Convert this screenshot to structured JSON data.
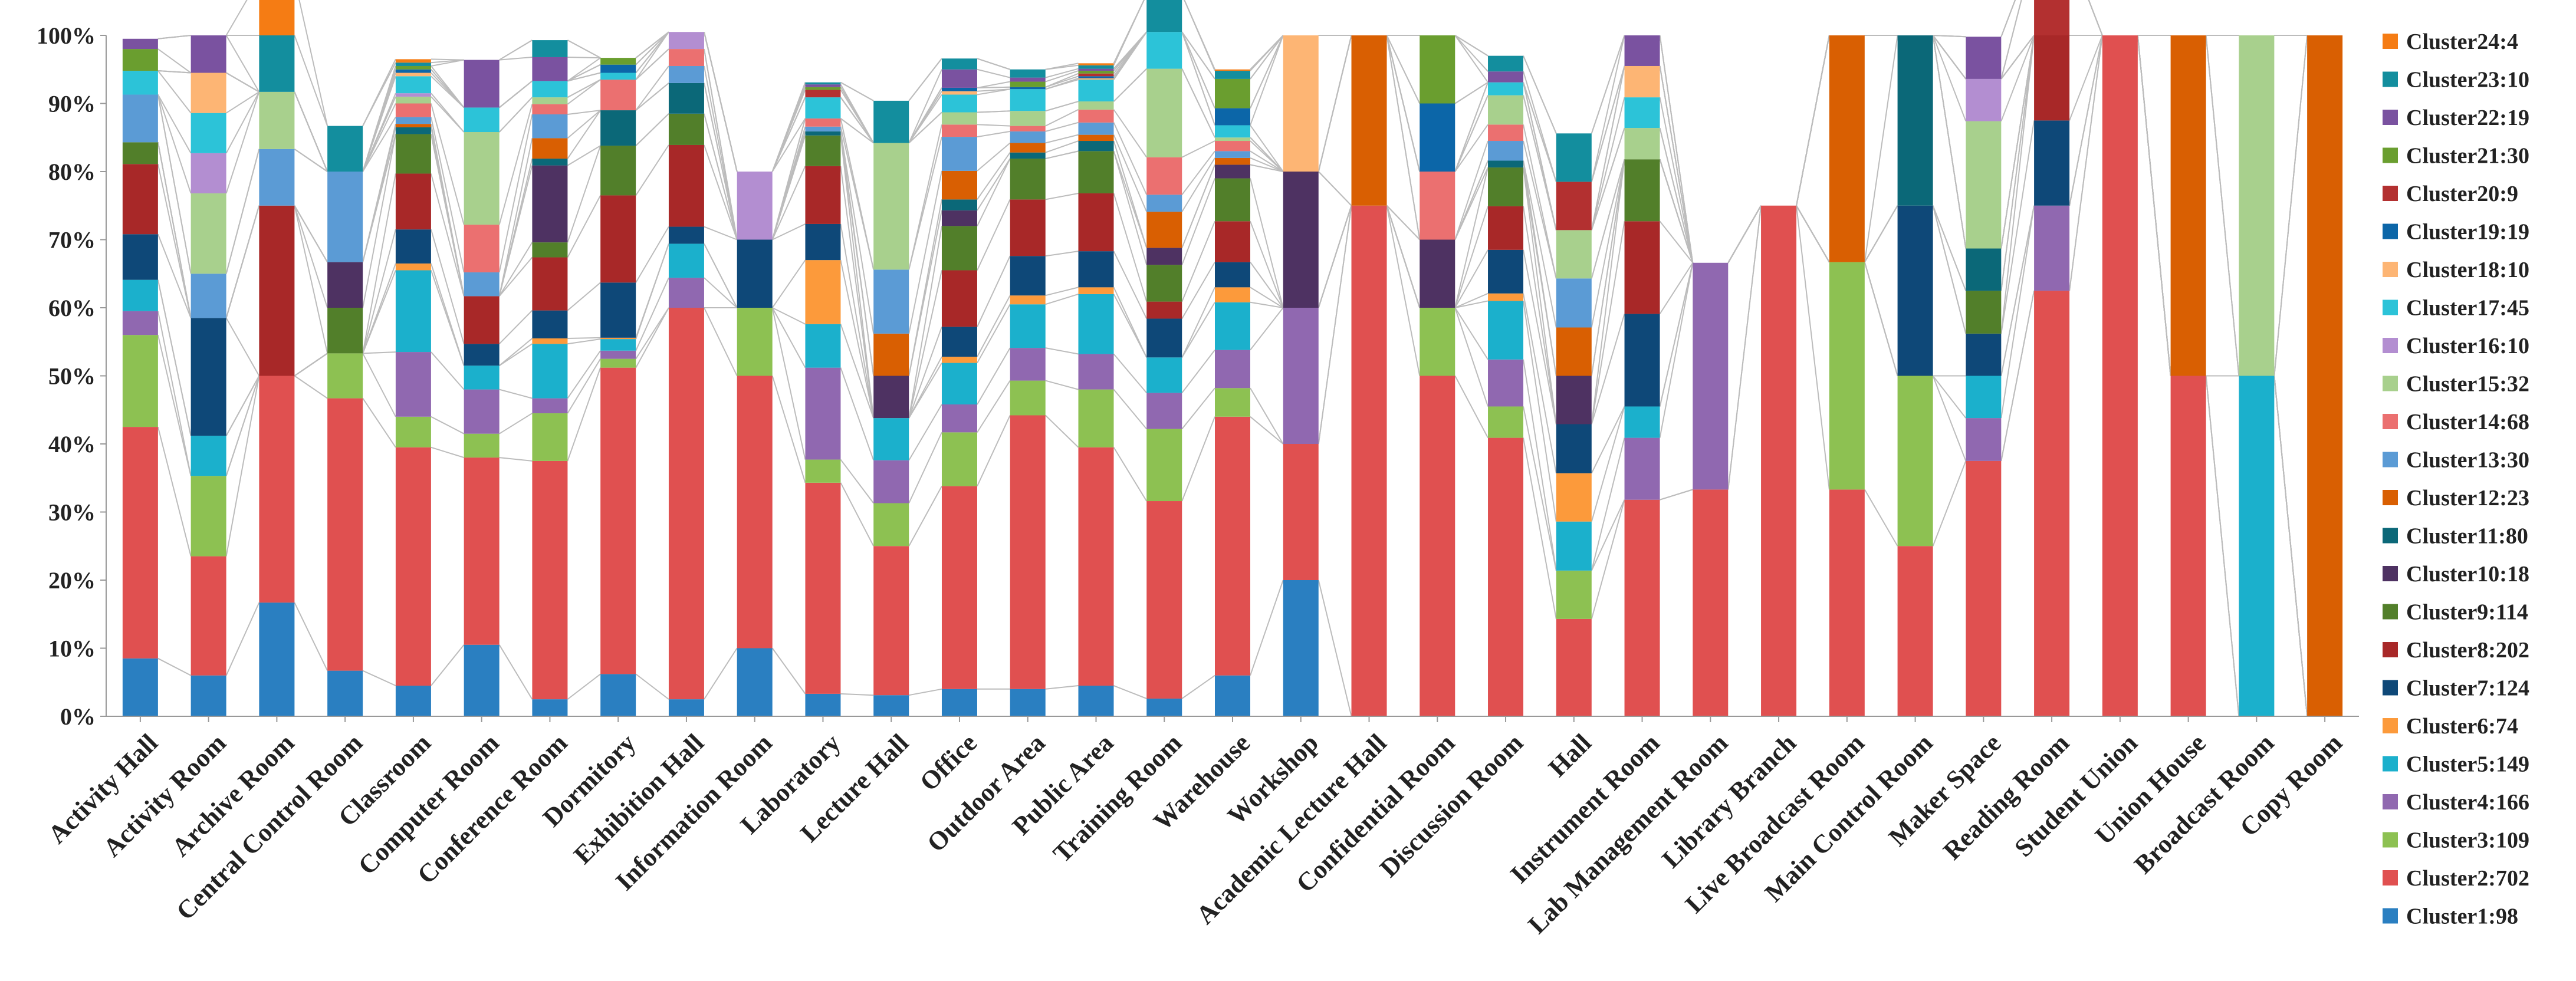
{
  "chart_data": {
    "type": "bar",
    "stacked": true,
    "normalized": true,
    "title": "",
    "xlabel": "",
    "ylabel": "",
    "ylim": [
      0,
      100
    ],
    "y_tick_suffix": "%",
    "y_ticks": [
      0,
      10,
      20,
      30,
      40,
      50,
      60,
      70,
      80,
      90,
      100
    ],
    "grid": false,
    "legend_position": "right",
    "connector_lines": true,
    "categories": [
      "Activity Hall",
      "Activity Room",
      "Archive Room",
      "Central Control Room",
      "Classroom",
      "Computer Room",
      "Conference Room",
      "Dormitory",
      "Exhibition Hall",
      "Information Room",
      "Laboratory",
      "Lecture Hall",
      "Office",
      "Outdoor Area",
      "Public Area",
      "Training Room",
      "Warehouse",
      "Workshop",
      "Academic Lecture Hall",
      "Confidential Room",
      "Discussion Room",
      "Hall",
      "Instrument Room",
      "Lab Management Room",
      "Library Branch",
      "Live Broadcast Room",
      "Main Control Room",
      "Maker Space",
      "Reading Room",
      "Student Union",
      "Union House",
      "Broadcast Room",
      "Copy Room"
    ],
    "series": [
      {
        "name": "Cluster1:98",
        "color": "#2A7FC1",
        "values": [
          8.5,
          6,
          16.7,
          6.7,
          4.5,
          10.5,
          2.5,
          6.2,
          2.5,
          10,
          3.3,
          3.1,
          4,
          4,
          4.5,
          2.6,
          6,
          20,
          0,
          0,
          0,
          0,
          0,
          0,
          0,
          0,
          0,
          0,
          0,
          0,
          0,
          0,
          0
        ]
      },
      {
        "name": "Cluster2:702",
        "color": "#E05050",
        "values": [
          34,
          17.5,
          33.3,
          40,
          35,
          27.5,
          35,
          45,
          57.5,
          40,
          31,
          21.9,
          29.8,
          40.2,
          35,
          29,
          38,
          20,
          75,
          50,
          40.9,
          14.3,
          31.8,
          33.3,
          75,
          33.3,
          25,
          37.5,
          62.5,
          100,
          50,
          0,
          0
        ]
      },
      {
        "name": "Cluster3:109",
        "color": "#8DC152",
        "values": [
          13.5,
          11.8,
          0,
          6.6,
          4.5,
          3.5,
          7,
          1.3,
          0,
          10,
          3.4,
          6.3,
          7.9,
          5.1,
          8.5,
          10.6,
          4.2,
          0,
          0,
          10,
          4.6,
          7.1,
          0,
          0,
          0,
          33.4,
          25,
          0,
          0,
          0,
          0,
          0,
          0
        ]
      },
      {
        "name": "Cluster4:166",
        "color": "#9068B0",
        "values": [
          3.5,
          0,
          0,
          0,
          9.5,
          6.5,
          2.2,
          1.2,
          4.4,
          0,
          13.5,
          6.3,
          4.1,
          4.8,
          5.2,
          5.3,
          5.6,
          20,
          0,
          0,
          6.9,
          0,
          9.1,
          33.3,
          0,
          0,
          0,
          6.3,
          12.5,
          0,
          0,
          0,
          0
        ]
      },
      {
        "name": "Cluster5:149",
        "color": "#1BB0CC",
        "values": [
          4.6,
          5.9,
          0,
          0,
          12,
          3.5,
          8,
          1.7,
          5,
          0,
          6.4,
          6.2,
          6.1,
          6.4,
          8.8,
          5.2,
          7,
          0,
          0,
          0,
          8.6,
          7.2,
          4.6,
          0,
          0,
          0,
          0,
          6.2,
          0,
          0,
          0,
          50,
          0
        ]
      },
      {
        "name": "Cluster6:74",
        "color": "#FC9A3B",
        "values": [
          0,
          0,
          0,
          0,
          1,
          0,
          0.8,
          0.2,
          0,
          0,
          9.4,
          0,
          0.9,
          1.3,
          1,
          0,
          2.2,
          0,
          0,
          0,
          1.1,
          7.1,
          0,
          0,
          0,
          0,
          0,
          0,
          0,
          0,
          0,
          0,
          0
        ]
      },
      {
        "name": "Cluster7:124",
        "color": "#0E4878",
        "values": [
          6.7,
          17.3,
          0,
          0,
          5,
          3.2,
          4.1,
          8.1,
          2.5,
          10,
          5.3,
          0,
          4.4,
          5.8,
          5.3,
          5.7,
          3.7,
          0,
          0,
          0,
          6.4,
          7.2,
          13.6,
          0,
          0,
          0,
          25,
          6.2,
          12.5,
          0,
          0,
          0,
          0
        ]
      },
      {
        "name": "Cluster8:202",
        "color": "#A82828",
        "values": [
          10.3,
          0,
          25,
          0,
          8.2,
          7,
          7.8,
          12.8,
          12,
          0,
          8.5,
          0,
          8.3,
          8.3,
          8.5,
          2.5,
          6,
          0,
          0,
          0,
          6.4,
          0,
          13.6,
          0,
          0,
          0,
          0,
          0,
          12.5,
          0,
          0,
          0,
          0
        ]
      },
      {
        "name": "Cluster9:114",
        "color": "#527F2A",
        "values": [
          3.2,
          0,
          0,
          6.7,
          5.8,
          0,
          2.2,
          7.3,
          4.6,
          0,
          4.5,
          0,
          6.5,
          6,
          6.2,
          5.4,
          6.3,
          0,
          0,
          0,
          5.7,
          0,
          9.1,
          0,
          0,
          0,
          0,
          6.3,
          0,
          0,
          0,
          0,
          0
        ]
      },
      {
        "name": "Cluster10:18",
        "color": "#4E3262",
        "values": [
          0,
          0,
          0,
          6.7,
          0,
          0,
          11.3,
          0,
          0,
          0,
          0,
          6.2,
          2.3,
          0,
          0,
          2.5,
          2,
          20,
          0,
          10,
          0,
          7.1,
          0,
          0,
          0,
          0,
          0,
          0,
          0,
          0,
          0,
          0,
          0
        ]
      },
      {
        "name": "Cluster11:80",
        "color": "#0B6878",
        "values": [
          0,
          0,
          0,
          0,
          1,
          0,
          1,
          5.2,
          4.5,
          0,
          0.6,
          0,
          1.6,
          0.9,
          1.5,
          0,
          0,
          0,
          0,
          0,
          1,
          0,
          0,
          0,
          0,
          0,
          25,
          6.2,
          0,
          0,
          0,
          0,
          0
        ]
      },
      {
        "name": "Cluster12:23",
        "color": "#D95F02",
        "values": [
          0,
          0,
          0,
          0,
          0.5,
          0,
          3,
          0,
          0,
          0,
          0,
          6.2,
          4.2,
          1.4,
          0.9,
          5.3,
          1,
          0,
          25,
          0,
          0,
          7.1,
          0,
          0,
          0,
          33.3,
          0,
          0,
          0,
          0,
          50,
          0,
          100
        ]
      },
      {
        "name": "Cluster13:30",
        "color": "#5B9BD5",
        "values": [
          7,
          6.5,
          8.3,
          13.3,
          1,
          3.5,
          3.5,
          0,
          2.5,
          0,
          0.7,
          9.4,
          5,
          1.7,
          1.8,
          2.5,
          1,
          0,
          0,
          0,
          2.9,
          7.2,
          0,
          0,
          0,
          0,
          0,
          0,
          0,
          0,
          0,
          0,
          0
        ]
      },
      {
        "name": "Cluster14:68",
        "color": "#EB7070",
        "values": [
          0,
          0,
          0,
          0,
          2,
          7,
          1.5,
          4.5,
          2.5,
          0,
          1.2,
          0,
          1.8,
          0.8,
          1.9,
          5.5,
          1.5,
          0,
          0,
          10,
          2.4,
          0,
          0,
          0,
          0,
          0,
          0,
          0,
          0,
          0,
          0,
          0,
          0
        ]
      },
      {
        "name": "Cluster15:32",
        "color": "#A8D08D",
        "values": [
          0,
          11.8,
          8.4,
          0,
          1,
          13.6,
          1,
          0,
          0,
          0,
          0,
          18.6,
          1.8,
          2.2,
          1.2,
          13,
          0.5,
          0,
          0,
          0,
          4.3,
          7.1,
          4.6,
          0,
          0,
          0,
          0,
          18.7,
          0,
          0,
          0,
          50,
          0
        ]
      },
      {
        "name": "Cluster16:10",
        "color": "#B38ED1",
        "values": [
          0,
          5.9,
          0,
          0,
          0.5,
          0,
          0,
          0,
          2.5,
          10,
          0,
          0,
          0,
          0,
          0,
          0,
          0,
          0,
          0,
          0,
          0,
          0,
          0,
          0,
          0,
          0,
          0,
          6.2,
          0,
          0,
          0,
          0,
          0
        ]
      },
      {
        "name": "Cluster17:45",
        "color": "#2CC3D8",
        "values": [
          3.5,
          5.9,
          0,
          0,
          2.5,
          3.6,
          2.4,
          1,
          0,
          0,
          3.1,
          0,
          2.6,
          3.2,
          3.2,
          5.4,
          1.8,
          0,
          0,
          0,
          1.9,
          0,
          4.5,
          0,
          0,
          0,
          0,
          0,
          0,
          0,
          0,
          0,
          0
        ]
      },
      {
        "name": "Cluster18:10",
        "color": "#FDB574",
        "values": [
          0,
          5.9,
          0,
          0,
          0.5,
          0,
          0,
          0,
          0,
          0,
          0,
          0,
          0.5,
          0,
          0.2,
          0,
          0,
          20,
          0,
          0,
          0,
          0,
          4.6,
          0,
          0,
          0,
          0,
          0,
          0,
          0,
          0,
          0,
          0
        ]
      },
      {
        "name": "Cluster19:19",
        "color": "#0C66A8",
        "values": [
          0,
          0,
          0,
          0,
          0.5,
          0,
          0,
          1.2,
          0,
          0,
          0,
          0,
          0.5,
          0.3,
          0.3,
          0,
          2.5,
          0,
          0,
          10,
          0,
          0,
          0,
          0,
          0,
          0,
          0,
          0,
          0,
          0,
          0,
          0,
          0
        ]
      },
      {
        "name": "Cluster20:9",
        "color": "#B33030",
        "values": [
          0,
          0,
          0,
          0,
          0,
          0,
          0,
          0,
          0,
          0,
          1.1,
          0,
          0,
          0,
          0.4,
          0,
          0,
          0,
          0,
          0,
          0,
          7.1,
          0,
          0,
          0,
          0,
          0,
          0,
          12.5,
          0,
          0,
          0,
          0
        ]
      },
      {
        "name": "Cluster21:30",
        "color": "#6A9E2F",
        "values": [
          3.2,
          0,
          0,
          0,
          0.5,
          0,
          0,
          1,
          0,
          0,
          0.4,
          0,
          0,
          0.8,
          0.4,
          0,
          4.3,
          0,
          0,
          10,
          0,
          0,
          0,
          0,
          0,
          0,
          0,
          0,
          0,
          0,
          0,
          0,
          0
        ]
      },
      {
        "name": "Cluster22:19",
        "color": "#7A52A0",
        "values": [
          1.5,
          5.5,
          0,
          0,
          0,
          7,
          3.5,
          0,
          0,
          0,
          0.4,
          0,
          2.7,
          0.6,
          0.3,
          0,
          0,
          0,
          0,
          0,
          1.6,
          0,
          4.5,
          0,
          0,
          0,
          0,
          6.2,
          0,
          0,
          0,
          0,
          0
        ]
      },
      {
        "name": "Cluster23:10",
        "color": "#138E9E",
        "values": [
          0,
          0,
          8.3,
          6.7,
          0.5,
          0,
          2.5,
          0,
          0,
          0,
          0.3,
          6.2,
          1.6,
          1.2,
          0.5,
          5.5,
          1.2,
          0,
          0,
          0,
          2.3,
          7.1,
          0,
          0,
          0,
          0,
          0,
          0,
          0,
          0,
          0,
          0,
          0
        ]
      },
      {
        "name": "Cluster24:4",
        "color": "#F57C14",
        "values": [
          0,
          0,
          8.3,
          0,
          0.5,
          0,
          0,
          0,
          0,
          0,
          0,
          0,
          0,
          0,
          0.3,
          0,
          0.2,
          0,
          0,
          0,
          0,
          0,
          0,
          0,
          0,
          0,
          0,
          0,
          0,
          0,
          0,
          0,
          0
        ]
      }
    ]
  }
}
